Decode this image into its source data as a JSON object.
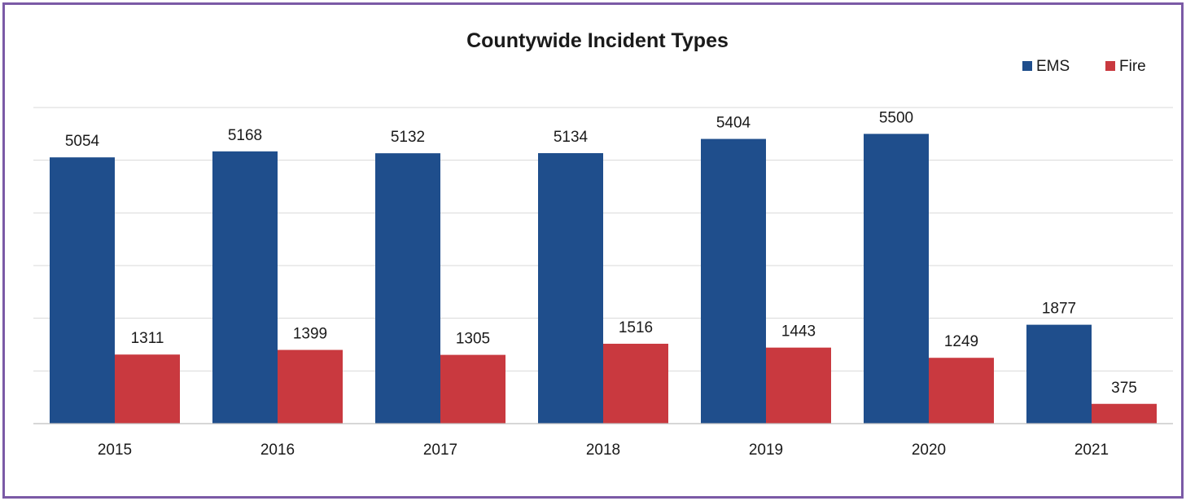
{
  "chart_data": {
    "type": "bar",
    "title": "Countywide Incident Types",
    "categories": [
      "2015",
      "2016",
      "2017",
      "2018",
      "2019",
      "2020",
      "2021"
    ],
    "series": [
      {
        "name": "EMS",
        "color": "#1f4e8c",
        "values": [
          5054,
          5168,
          5132,
          5134,
          5404,
          5500,
          1877
        ]
      },
      {
        "name": "Fire",
        "color": "#c9393f",
        "values": [
          1311,
          1399,
          1305,
          1516,
          1443,
          1249,
          375
        ]
      }
    ],
    "ylim": [
      0,
      6000
    ],
    "grid": true,
    "legend": "top-right",
    "data_labels": true
  }
}
